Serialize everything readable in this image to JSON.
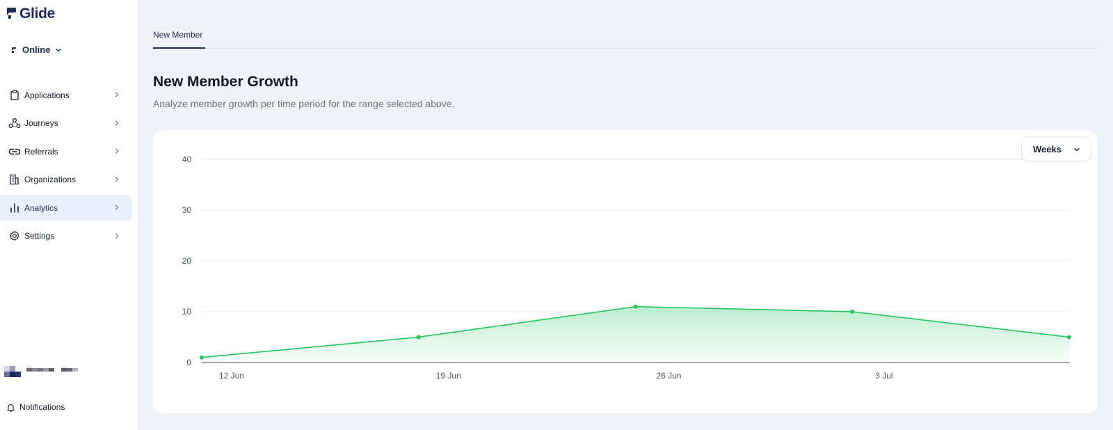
{
  "app": {
    "name": "Glide"
  },
  "workspace": {
    "label": "Online"
  },
  "sidebar": {
    "items": [
      {
        "label": "Applications",
        "icon": "clipboard-icon",
        "active": false
      },
      {
        "label": "Journeys",
        "icon": "journey-nodes-icon",
        "active": false
      },
      {
        "label": "Referrals",
        "icon": "link-icon",
        "active": false
      },
      {
        "label": "Organizations",
        "icon": "building-icon",
        "active": false
      },
      {
        "label": "Analytics",
        "icon": "bar-chart-icon",
        "active": true
      },
      {
        "label": "Settings",
        "icon": "gear-icon",
        "active": false
      }
    ],
    "notifications_label": "Notifications"
  },
  "tabs": [
    {
      "label": "New Member",
      "active": true
    }
  ],
  "page": {
    "title": "New Member Growth",
    "subtitle": "Analyze member growth per time period for the range selected above."
  },
  "period_select": {
    "value": "Weeks"
  },
  "colors": {
    "accent": "#1e2a5a",
    "series": "#22c55e",
    "active_bg": "#e8effa",
    "page_bg": "#eff2f7"
  },
  "chart_data": {
    "type": "area",
    "x_tick_labels": [
      "12 Jun",
      "19 Jun",
      "26 Jun",
      "3 Jul"
    ],
    "y_ticks": [
      0,
      10,
      20,
      30,
      40
    ],
    "ylim": [
      0,
      40
    ],
    "grid": true,
    "values": [
      1,
      5,
      11,
      10,
      5
    ]
  }
}
